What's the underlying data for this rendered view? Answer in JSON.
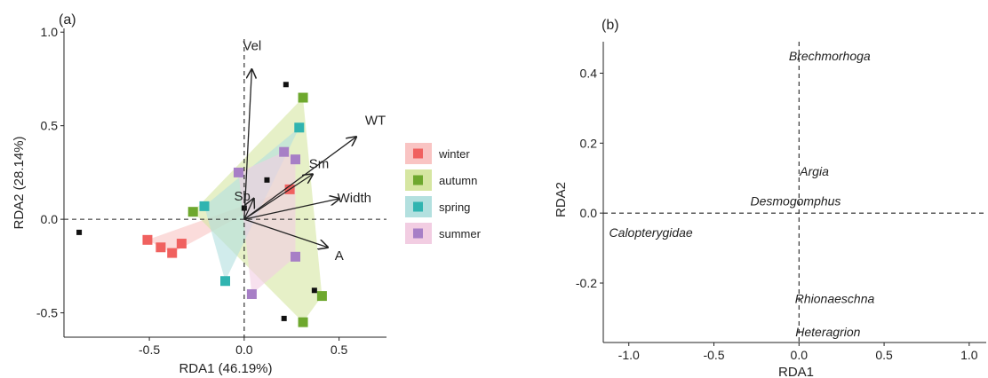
{
  "chart_data": [
    {
      "panel_label": "(a)",
      "type": "scatter",
      "xlabel": "RDA1 (46.19%)",
      "ylabel": "RDA2 (28.14%)",
      "xlim": [
        -0.95,
        0.75
      ],
      "ylim": [
        -0.63,
        1.02
      ],
      "xticks": [
        -0.5,
        0.0,
        0.5
      ],
      "xtick_labels": [
        "-0.5",
        "0.0",
        "0.5"
      ],
      "yticks": [
        -0.5,
        0.0,
        0.5,
        1.0
      ],
      "ytick_labels": [
        "-0.5",
        "0.0",
        "0.5",
        "1.0"
      ],
      "legend_position": "right",
      "series": [
        {
          "name": "winter",
          "color": "#f0615f",
          "hull_color": "#f9c4c3",
          "points": [
            [
              -0.51,
              -0.11
            ],
            [
              -0.44,
              -0.15
            ],
            [
              -0.38,
              -0.18
            ],
            [
              -0.33,
              -0.13
            ],
            [
              0.24,
              0.16
            ]
          ]
        },
        {
          "name": "autumn",
          "color": "#6ea82e",
          "hull_color": "#d6e6a2",
          "points": [
            [
              -0.27,
              0.04
            ],
            [
              0.31,
              0.65
            ],
            [
              0.41,
              -0.41
            ],
            [
              0.31,
              -0.55
            ]
          ]
        },
        {
          "name": "spring",
          "color": "#30b4b0",
          "hull_color": "#b3e0df",
          "points": [
            [
              -0.21,
              0.07
            ],
            [
              0.29,
              0.49
            ],
            [
              -0.1,
              -0.33
            ]
          ]
        },
        {
          "name": "summer",
          "color": "#a77fc6",
          "hull_color": "#f2cde2",
          "points": [
            [
              -0.03,
              0.25
            ],
            [
              0.21,
              0.36
            ],
            [
              0.27,
              0.32
            ],
            [
              0.27,
              -0.2
            ],
            [
              0.04,
              -0.4
            ]
          ]
        }
      ],
      "site_points": [
        [
          -0.87,
          -0.07
        ],
        [
          0.22,
          0.72
        ],
        [
          0.12,
          0.21
        ],
        [
          0.37,
          -0.38
        ],
        [
          0.21,
          -0.53
        ],
        [
          0.0,
          0.06
        ]
      ],
      "arrows": [
        {
          "label": "Vel",
          "x": 0.04,
          "y": 0.8
        },
        {
          "label": "WT",
          "x": 0.59,
          "y": 0.44
        },
        {
          "label": "Sm",
          "x": 0.36,
          "y": 0.24
        },
        {
          "label": "Width",
          "x": 0.5,
          "y": 0.11
        },
        {
          "label": "A",
          "x": 0.44,
          "y": -0.15
        },
        {
          "label": "Sp",
          "x": 0.05,
          "y": 0.11
        }
      ],
      "reference_lines": {
        "x": 0.0,
        "y": 0.0,
        "style": "dashed"
      }
    },
    {
      "panel_label": "(b)",
      "type": "scatter",
      "xlabel": "RDA1",
      "ylabel": "RDA2",
      "xlim": [
        -1.15,
        1.1
      ],
      "ylim": [
        -0.37,
        0.49
      ],
      "xticks": [
        -1.0,
        -0.5,
        0.0,
        0.5,
        1.0
      ],
      "xtick_labels": [
        "-1.0",
        "-0.5",
        "0.0",
        "0.5",
        "1.0"
      ],
      "yticks": [
        -0.2,
        0.0,
        0.2,
        0.4
      ],
      "ytick_labels": [
        "-0.2",
        "0.0",
        "0.2",
        "0.4"
      ],
      "species": [
        {
          "label": "Brechmorhoga",
          "x": 0.18,
          "y": 0.45
        },
        {
          "label": "Argia",
          "x": 0.09,
          "y": 0.12
        },
        {
          "label": "Desmogomphus",
          "x": -0.02,
          "y": 0.035
        },
        {
          "label": "Calopterygidae",
          "x": -0.87,
          "y": -0.055
        },
        {
          "label": "Rhionaeschna",
          "x": 0.21,
          "y": -0.245
        },
        {
          "label": "Heteragrion",
          "x": 0.17,
          "y": -0.34
        }
      ],
      "reference_lines": {
        "x": 0.0,
        "y": 0.0,
        "style": "dashed"
      }
    }
  ]
}
